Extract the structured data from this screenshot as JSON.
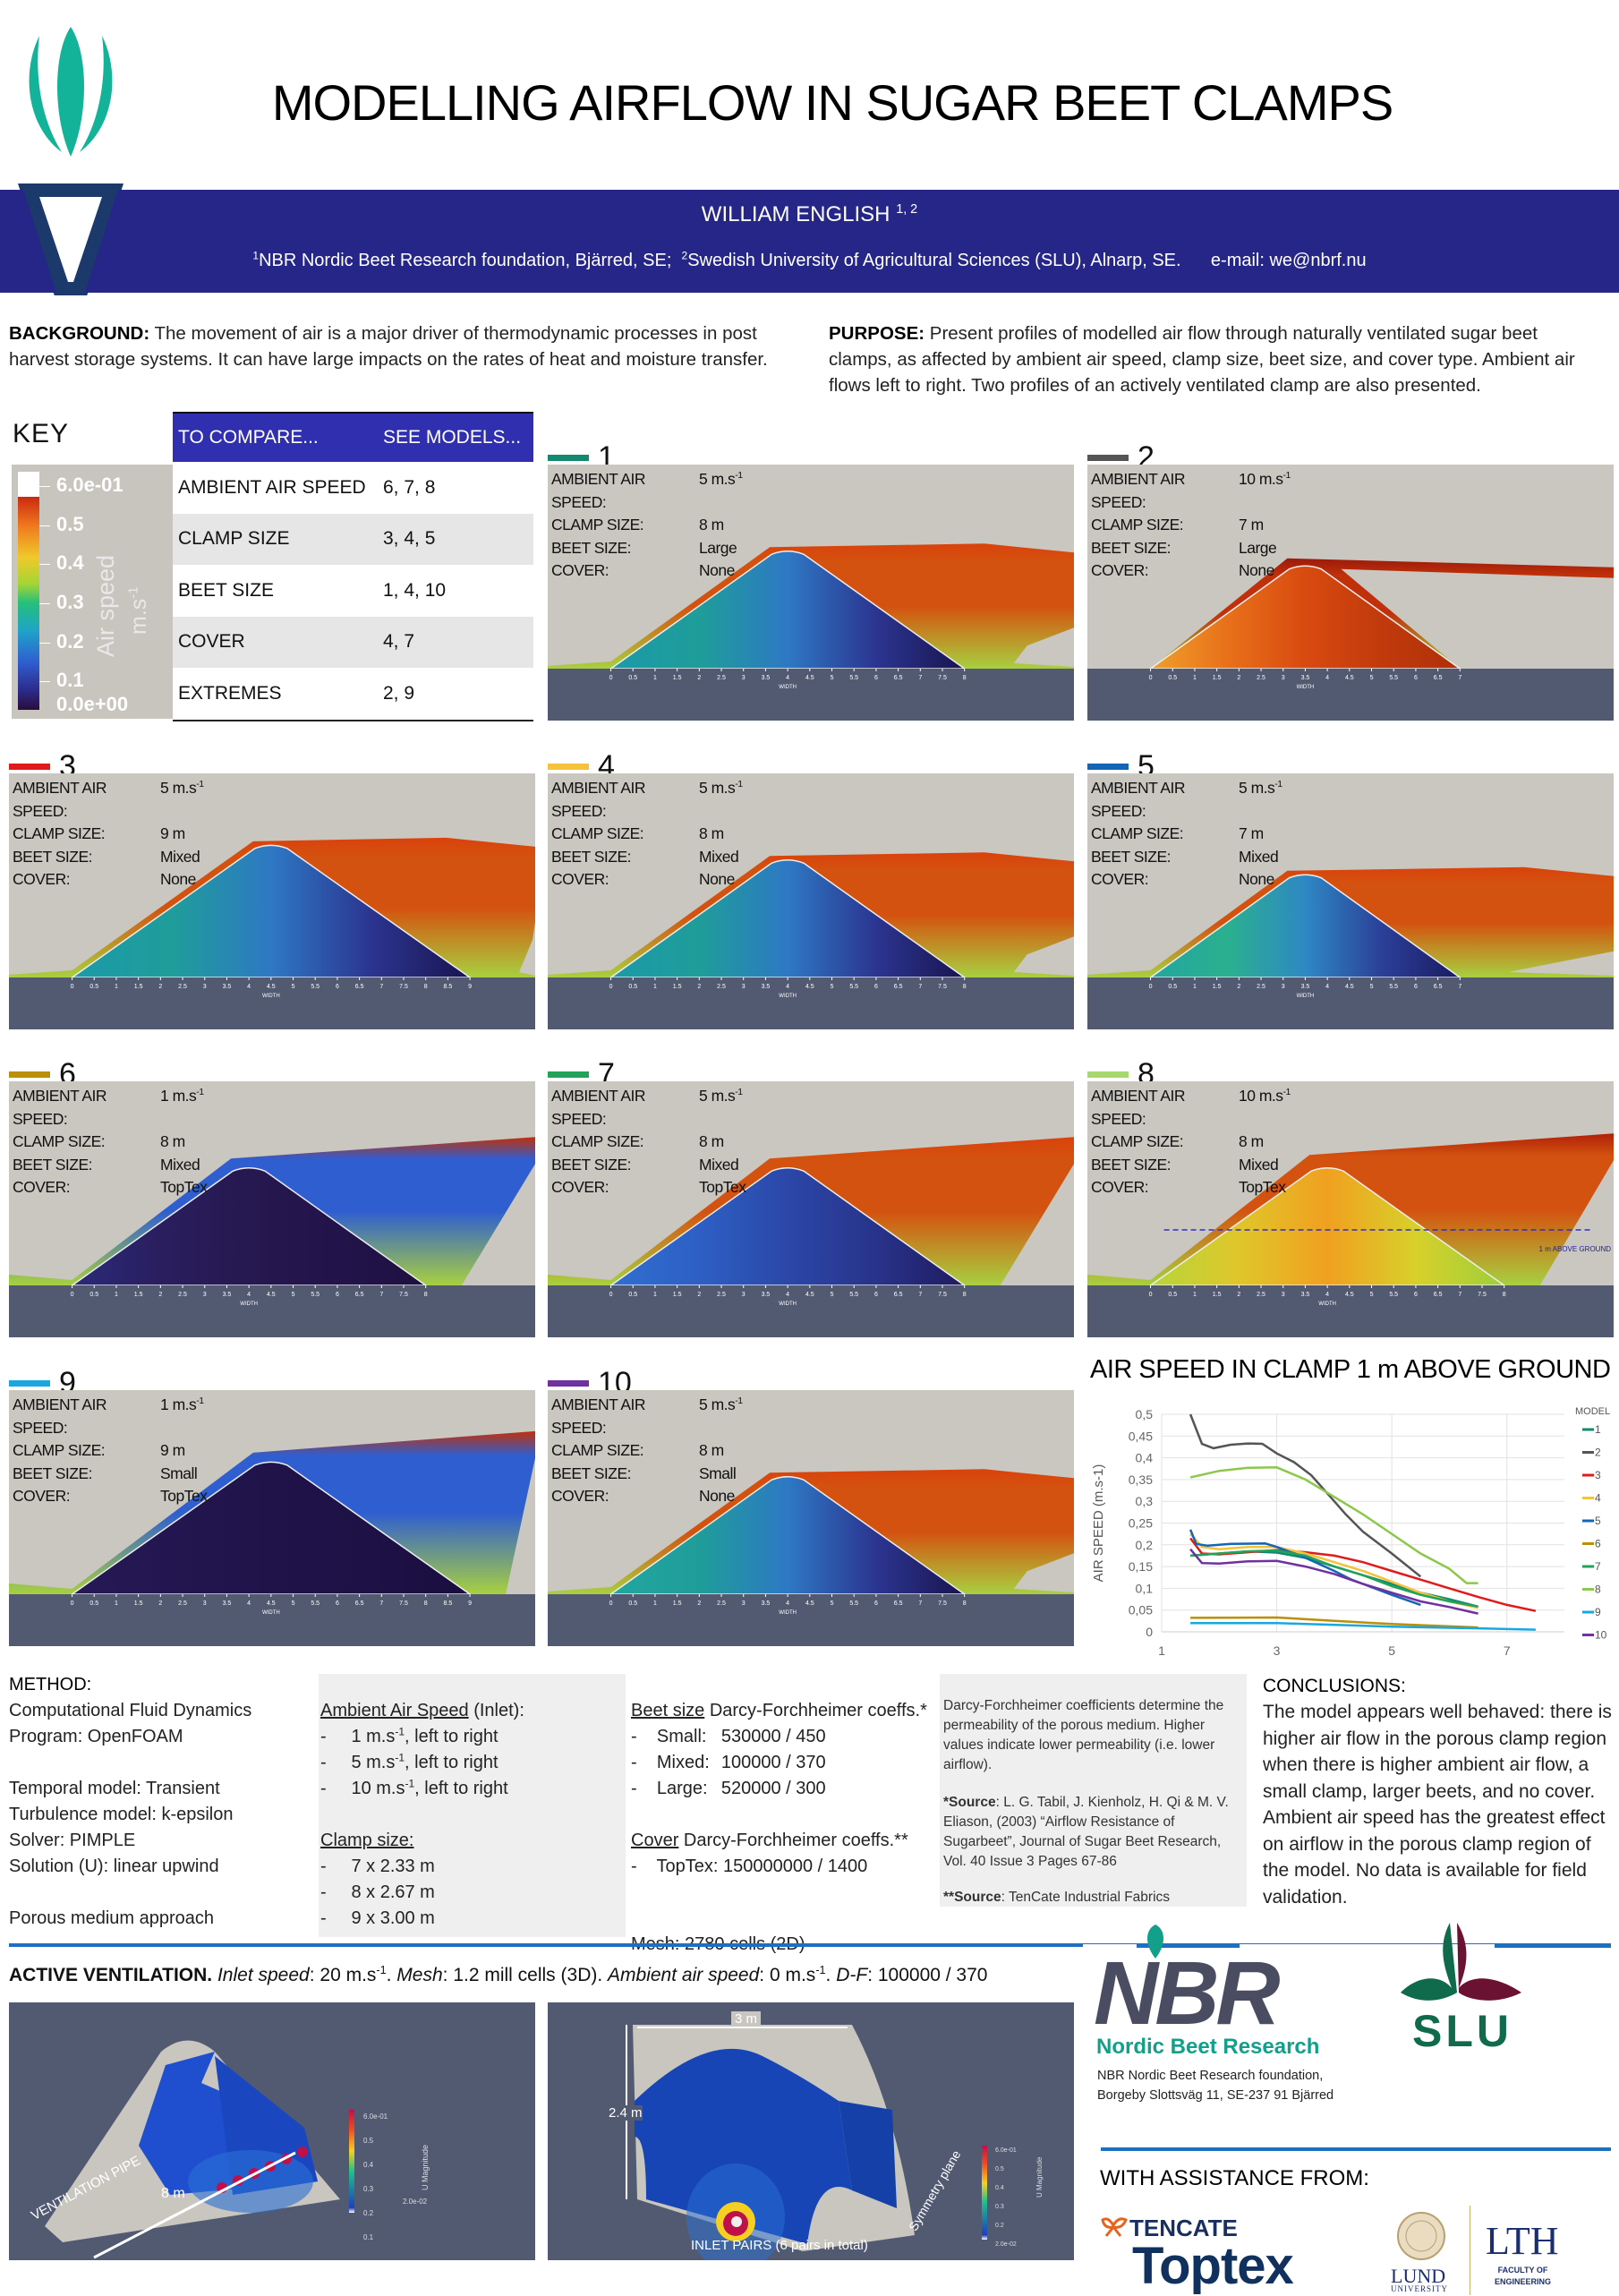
{
  "header": {
    "title": "MODELLING AIRFLOW IN SUGAR BEET CLAMPS",
    "author": "WILLIAM ENGLISH",
    "author_sup": "1, 2",
    "affil_1_sup": "1",
    "affil_1": "NBR Nordic Beet Research foundation, Bjärred, SE;",
    "affil_2_sup": "2",
    "affil_2": "Swedish University of Agricultural Sciences (SLU), Alnarp, SE.",
    "email": "e-mail: we@nbrf.nu"
  },
  "background": {
    "label": "BACKGROUND:",
    "text": "The movement of air is a major driver of thermodynamic processes in post harvest storage systems. It can have large impacts on the rates of heat and moisture transfer."
  },
  "purpose": {
    "label": "PURPOSE:",
    "text": "Present profiles of modelled air flow through naturally ventilated sugar beet clamps, as affected by ambient air speed, clamp size, beet size, and cover type. Ambient air flows left to right. Two profiles of an actively ventilated clamp are also presented."
  },
  "key": {
    "title": "KEY",
    "colorbar_labels": [
      "6.0e-01",
      "0.5",
      "0.4",
      "0.3",
      "0.2",
      "0.1",
      "0.0e+00"
    ],
    "colorbar_title": "Air speed",
    "colorbar_unit": "m.s",
    "colorbar_unit_sup": "-1"
  },
  "compare_table": {
    "headers": [
      "TO COMPARE...",
      "SEE MODELS..."
    ],
    "rows": [
      [
        "AMBIENT AIR SPEED",
        "6, 7, 8"
      ],
      [
        "CLAMP SIZE",
        "3, 4, 5"
      ],
      [
        "BEET SIZE",
        "1, 4, 10"
      ],
      [
        "COVER",
        "4, 7"
      ],
      [
        "EXTREMES",
        "2, 9"
      ]
    ]
  },
  "field_labels": {
    "speed": "AMBIENT AIR SPEED:",
    "clamp": "CLAMP SIZE:",
    "beet": "BEET SIZE:",
    "cover": "COVER:",
    "axis": "WIDTH"
  },
  "models": [
    {
      "num": "1",
      "color": "#138a6f",
      "speed": "5 m.s",
      "clamp": "8 m",
      "beet": "Large",
      "cover": "None",
      "width_max": 8
    },
    {
      "num": "2",
      "color": "#555555",
      "speed": "10 m.s",
      "clamp": "7 m",
      "beet": "Large",
      "cover": "None",
      "width_max": 7
    },
    {
      "num": "3",
      "color": "#e01b1b",
      "speed": "5 m.s",
      "clamp": "9 m",
      "beet": "Mixed",
      "cover": "None",
      "width_max": 9
    },
    {
      "num": "4",
      "color": "#f5c33b",
      "speed": "5 m.s",
      "clamp": "8 m",
      "beet": "Mixed",
      "cover": "None",
      "width_max": 8
    },
    {
      "num": "5",
      "color": "#1565b5",
      "speed": "5 m.s",
      "clamp": "7 m",
      "beet": "Mixed",
      "cover": "None",
      "width_max": 7
    },
    {
      "num": "6",
      "color": "#b8900a",
      "speed": "1 m.s",
      "clamp": "8 m",
      "beet": "Mixed",
      "cover": "TopTex",
      "width_max": 8
    },
    {
      "num": "7",
      "color": "#21a35a",
      "speed": "5 m.s",
      "clamp": "8 m",
      "beet": "Mixed",
      "cover": "TopTex",
      "width_max": 8
    },
    {
      "num": "8",
      "color": "#a6d86e",
      "speed": "10 m.s",
      "clamp": "8 m",
      "beet": "Mixed",
      "cover": "TopTex",
      "width_max": 8,
      "annotation": "1 m ABOVE GROUND"
    },
    {
      "num": "9",
      "color": "#1aa7e0",
      "speed": "1 m.s",
      "clamp": "9 m",
      "beet": "Small",
      "cover": "TopTex",
      "width_max": 9
    },
    {
      "num": "10",
      "color": "#7030a0",
      "speed": "5 m.s",
      "clamp": "8 m",
      "beet": "Small",
      "cover": "None",
      "width_max": 8
    }
  ],
  "speed_sup": "-1",
  "chart_data": {
    "type": "line",
    "title": "AIR SPEED IN CLAMP 1 m ABOVE GROUND",
    "xlabel": "WIDTH (m)",
    "ylabel": "AIR SPEED (m.s-1)",
    "xlim": [
      1,
      8
    ],
    "ylim": [
      0,
      0.5
    ],
    "xticks": [
      "1",
      "3",
      "5",
      "7"
    ],
    "xtick_values": [
      1,
      3,
      5,
      7
    ],
    "yticks": [
      "0",
      "0,05",
      "0,1",
      "0,15",
      "0,2",
      "0,25",
      "0,3",
      "0,35",
      "0,4",
      "0,45",
      "0,5"
    ],
    "ytick_values": [
      0,
      0.05,
      0.1,
      0.15,
      0.2,
      0.25,
      0.3,
      0.35,
      0.4,
      0.45,
      0.5
    ],
    "grid": true,
    "legend_title": "MODEL",
    "legend_position": "right",
    "series": [
      {
        "name": "1",
        "color": "#138a6f",
        "x": [
          1.5,
          2,
          2.5,
          3,
          3.5,
          4,
          4.5,
          5,
          5.5,
          6,
          6.5
        ],
        "y": [
          0.175,
          0.18,
          0.185,
          0.182,
          0.17,
          0.15,
          0.13,
          0.11,
          0.09,
          0.075,
          0.058
        ]
      },
      {
        "name": "2",
        "color": "#555555",
        "x": [
          1.5,
          1.7,
          1.9,
          2.2,
          2.5,
          2.75,
          3,
          3.3,
          3.6,
          4,
          4.2,
          4.5,
          5,
          5.5
        ],
        "y": [
          0.5,
          0.432,
          0.422,
          0.43,
          0.433,
          0.432,
          0.41,
          0.39,
          0.36,
          0.3,
          0.27,
          0.23,
          0.18,
          0.127
        ]
      },
      {
        "name": "3",
        "color": "#e01b1b",
        "x": [
          1.5,
          1.7,
          2,
          2.5,
          3,
          3.5,
          4,
          4.5,
          5,
          5.5,
          6,
          6.5,
          7,
          7.5
        ],
        "y": [
          0.215,
          0.18,
          0.178,
          0.183,
          0.188,
          0.183,
          0.175,
          0.16,
          0.14,
          0.12,
          0.1,
          0.08,
          0.062,
          0.048
        ]
      },
      {
        "name": "4",
        "color": "#f5c33b",
        "x": [
          1.5,
          1.7,
          2,
          2.5,
          3,
          3.5,
          4,
          4.5,
          5,
          5.5,
          6,
          6.5
        ],
        "y": [
          0.225,
          0.195,
          0.19,
          0.195,
          0.195,
          0.18,
          0.16,
          0.14,
          0.115,
          0.09,
          0.07,
          0.055
        ]
      },
      {
        "name": "5",
        "color": "#1565b5",
        "x": [
          1.5,
          1.6,
          1.8,
          2.2,
          2.8,
          3,
          3.5,
          4,
          4.3,
          4.5,
          5,
          5.5
        ],
        "y": [
          0.235,
          0.202,
          0.198,
          0.202,
          0.203,
          0.195,
          0.17,
          0.14,
          0.12,
          0.11,
          0.085,
          0.062
        ]
      },
      {
        "name": "6",
        "color": "#b8900a",
        "x": [
          1.5,
          3,
          4,
          5,
          6.5
        ],
        "y": [
          0.032,
          0.033,
          0.025,
          0.018,
          0.01
        ]
      },
      {
        "name": "7",
        "color": "#21a35a",
        "x": [
          1.5,
          2,
          2.5,
          3,
          3.5,
          4,
          4.5,
          5,
          5.5,
          6,
          6.5
        ],
        "y": [
          0.175,
          0.18,
          0.185,
          0.187,
          0.175,
          0.15,
          0.13,
          0.105,
          0.085,
          0.07,
          0.058
        ]
      },
      {
        "name": "8",
        "color": "#8cc84b",
        "x": [
          1.5,
          2,
          2.5,
          3,
          3.5,
          4,
          4.5,
          5,
          5.5,
          6,
          6.3,
          6.5
        ],
        "y": [
          0.355,
          0.37,
          0.377,
          0.378,
          0.35,
          0.31,
          0.27,
          0.225,
          0.18,
          0.145,
          0.112,
          0.112
        ]
      },
      {
        "name": "9",
        "color": "#1aa7e0",
        "x": [
          1.5,
          3,
          5,
          6.5,
          7.5
        ],
        "y": [
          0.02,
          0.02,
          0.012,
          0.008,
          0.005
        ]
      },
      {
        "name": "10",
        "color": "#7030a0",
        "x": [
          1.5,
          1.7,
          2,
          2.5,
          3,
          3.5,
          4,
          4.5,
          5,
          5.5,
          6,
          6.5
        ],
        "y": [
          0.19,
          0.158,
          0.157,
          0.162,
          0.163,
          0.15,
          0.133,
          0.11,
          0.09,
          0.07,
          0.057,
          0.042
        ]
      }
    ]
  },
  "method": {
    "title": "METHOD:",
    "col1": [
      "Computational Fluid Dynamics",
      "Program: OpenFOAM",
      "",
      "Temporal model: Transient",
      "Turbulence model: k-epsilon",
      "Solver: PIMPLE",
      "Solution (U): linear upwind",
      "",
      "Porous medium approach"
    ],
    "air_speed_title_u": "Ambient Air Speed",
    "air_speed_title_rest": " (Inlet):",
    "air_speeds": [
      {
        "value": "1 m.s",
        "rest": ", left to right"
      },
      {
        "value": "5 m.s",
        "rest": ", left to right"
      },
      {
        "value": "10 m.s",
        "rest": ", left to right"
      }
    ],
    "clamp_title": "Clamp size:",
    "clamp_sizes": [
      "7 x 2.33 m",
      "8 x 2.67 m",
      "9 x 3.00 m"
    ],
    "beet_title_u": "Beet size",
    "beet_title_rest": " Darcy-Forchheimer coeffs.*",
    "beet_coeffs": [
      [
        "Small:",
        "530000 / 450"
      ],
      [
        "Mixed:",
        "100000 / 370"
      ],
      [
        "Large:",
        "520000 / 300"
      ]
    ],
    "cover_title_u": "Cover",
    "cover_title_rest": " Darcy-Forchheimer coeffs.**",
    "cover_coeff": "TopTex: 150000000 / 1400",
    "mesh": "Mesh: 2780 cells (2D)",
    "df_note": "Darcy-Forchheimer coefficients determine the permeability of the porous medium. Higher values indicate lower permeability (i.e. lower airflow).",
    "source1_label": "*Source",
    "source1": ": L. G. Tabil, J. Kienholz, H. Qi & M. V. Eliason, (2003) “Airflow Resistance of Sugarbeet”, Journal of Sugar Beet Research, Vol. 40 Issue 3 Pages 67-86",
    "source2_label": "**Source",
    "source2": ": TenCate Industrial Fabrics"
  },
  "conclusions": {
    "title": "CONCLUSIONS:",
    "text": "The model appears well behaved: there is higher air flow in the porous clamp region when there is higher ambient air flow, a small clamp, larger beets, and no cover. Ambient air speed has the greatest effect on airflow in the porous clamp region of the model. No data is available for field validation."
  },
  "active": {
    "label": "ACTIVE VENTILATION.",
    "inlet_l": "Inlet speed",
    "inlet_v": ": 20 m.s",
    "mesh_l": "Mesh",
    "mesh_v": ": 1.2 mill cells (3D).",
    "amb_l": "Ambient air speed",
    "amb_v": ": 0 m.s",
    "df_l": "D-F",
    "df_v": ": 100000 / 370",
    "img1": {
      "pipe": "VENTILATION PIPE",
      "length": "8 m"
    },
    "img2": {
      "width": "3 m",
      "height": "2.4 m",
      "inlet": "INLET PAIRS (6 pairs in total)",
      "sym": "Symmetry plane"
    },
    "cbar_labels": [
      "6.0e-01",
      "0.5",
      "0.4",
      "0.3",
      "0.2",
      "0.1",
      "2.0e-02"
    ],
    "cbar_title": "U Magnitude"
  },
  "logos": {
    "nbr": "NBR",
    "nbr_sub": "Nordic Beet Research",
    "nbr_addr1": "NBR Nordic Beet Research foundation,",
    "nbr_addr2": "Borgeby Slottsväg 11, SE-237 91 Bjärred",
    "slu": "SLU",
    "assist": "WITH ASSISTANCE FROM:",
    "tencate": "TENCATE",
    "toptex": "Toptex",
    "lund": "LUND",
    "lund_sub": "UNIVERSITY",
    "lth": "LTH",
    "lth_sub1": "FACULTY OF",
    "lth_sub2": "ENGINEERING"
  }
}
